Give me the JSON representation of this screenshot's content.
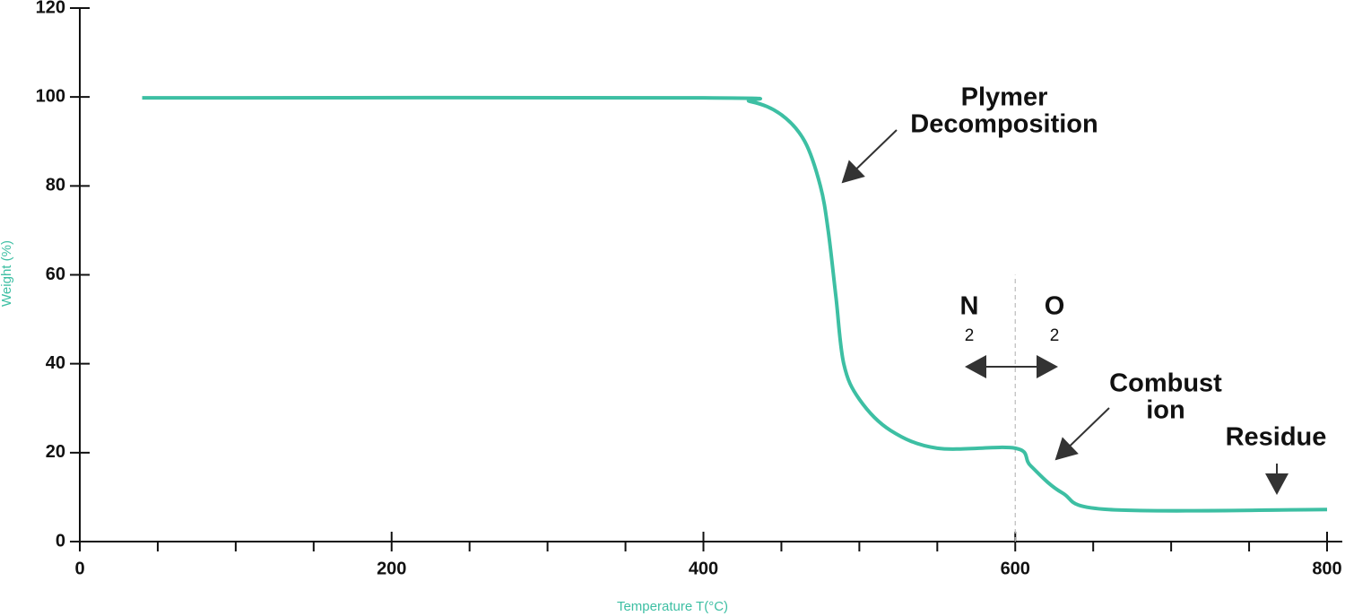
{
  "chart_data": {
    "type": "line",
    "x_label": "Temperature T(°C)",
    "y_label": "Weight (%)",
    "xlim": [
      0,
      800
    ],
    "ylim": [
      0,
      120
    ],
    "xticks": [
      0,
      200,
      400,
      600,
      800
    ],
    "xminor_ticks": [
      50,
      100,
      150,
      250,
      300,
      350,
      450,
      500,
      550,
      650,
      700,
      750
    ],
    "yticks": [
      0,
      20,
      40,
      60,
      80,
      100,
      120
    ],
    "grid": false,
    "series": [
      {
        "name": "Weight",
        "color": "#3dbfa3",
        "x": [
          40,
          400,
          430,
          450,
          465,
          475,
          480,
          485,
          490,
          500,
          520,
          550,
          600,
          610,
          630,
          660,
          800
        ],
        "values": [
          99.8,
          99.8,
          99,
          96,
          90,
          80,
          70,
          55,
          40,
          32,
          25,
          21,
          21,
          17,
          11,
          7.2,
          7.2
        ]
      }
    ],
    "divider": {
      "x": 600,
      "y": [
        0,
        60
      ]
    },
    "annotations": {
      "decomposition": [
        "Plymer",
        "Decomposition"
      ],
      "n2": [
        "N",
        "2"
      ],
      "o2": [
        "O",
        "2"
      ],
      "combustion": [
        "Combust",
        "ion"
      ],
      "residue": "Residue"
    }
  }
}
